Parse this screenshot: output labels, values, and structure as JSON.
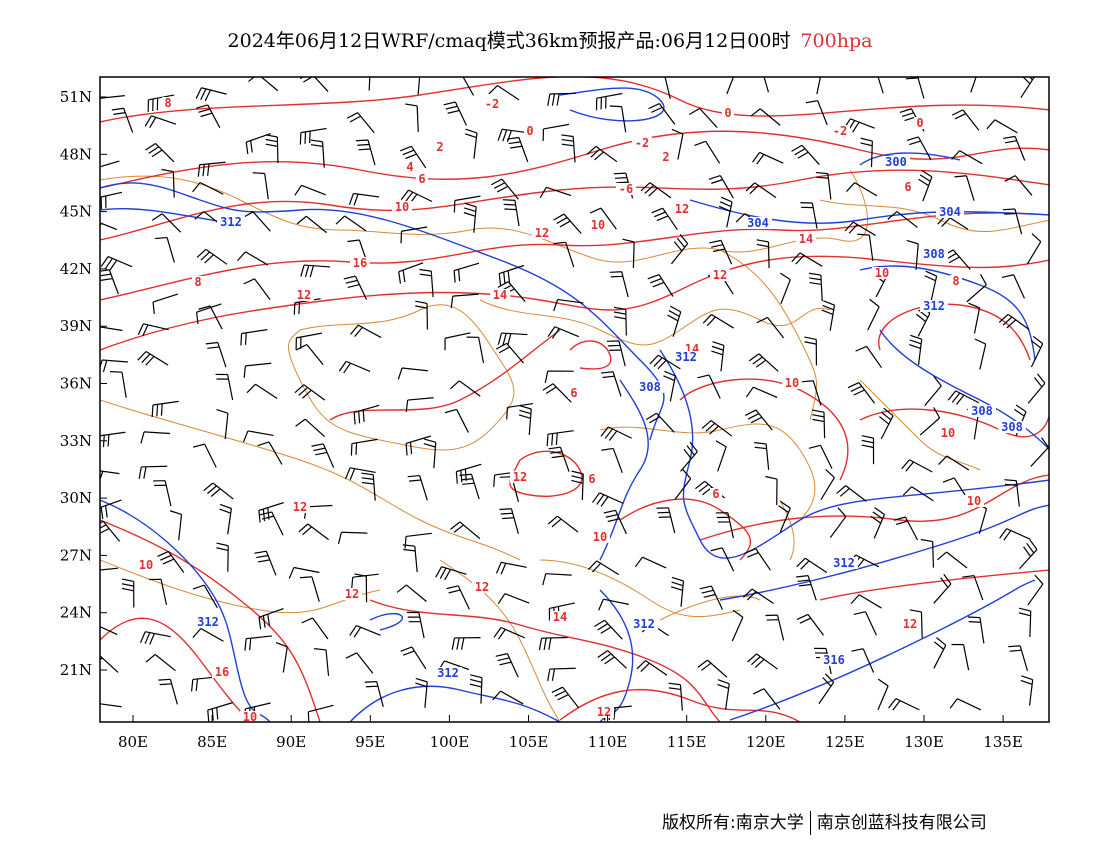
{
  "title": {
    "main": "2024年06月12日WRF/cmaq模式36km预报产品:06月12日00时",
    "level": "700hpa"
  },
  "axes": {
    "lon_ticks": [
      "80E",
      "85E",
      "90E",
      "95E",
      "100E",
      "105E",
      "110E",
      "115E",
      "120E",
      "125E",
      "130E",
      "135E"
    ],
    "lat_ticks": [
      "51N",
      "48N",
      "45N",
      "42N",
      "39N",
      "36N",
      "33N",
      "30N",
      "27N",
      "24N",
      "21N"
    ]
  },
  "contours": {
    "temperature_color": "#e03030",
    "height_color": "#1f3fd8",
    "border_color": "#d98a3a",
    "wind_color": "#000000",
    "temperature_labels": [
      "-2",
      "0",
      "0",
      "-2",
      "2",
      "-2",
      "2",
      "0",
      "4",
      "-6",
      "6",
      "6",
      "8",
      "10",
      "10",
      "12",
      "12",
      "14",
      "16",
      "12",
      "14",
      "12",
      "10",
      "8",
      "8",
      "6",
      "6",
      "6",
      "10",
      "10",
      "12",
      "12",
      "14",
      "10",
      "16",
      "12",
      "14",
      "12",
      "10",
      "10",
      "10",
      "12",
      "12"
    ],
    "height_labels": [
      "312",
      "304",
      "304",
      "308",
      "308",
      "312",
      "312",
      "308",
      "308",
      "312",
      "312",
      "312",
      "316",
      "312",
      "300"
    ]
  },
  "footer": {
    "left": "版权所有:南京大学",
    "right": "南京创蓝科技有限公司"
  }
}
